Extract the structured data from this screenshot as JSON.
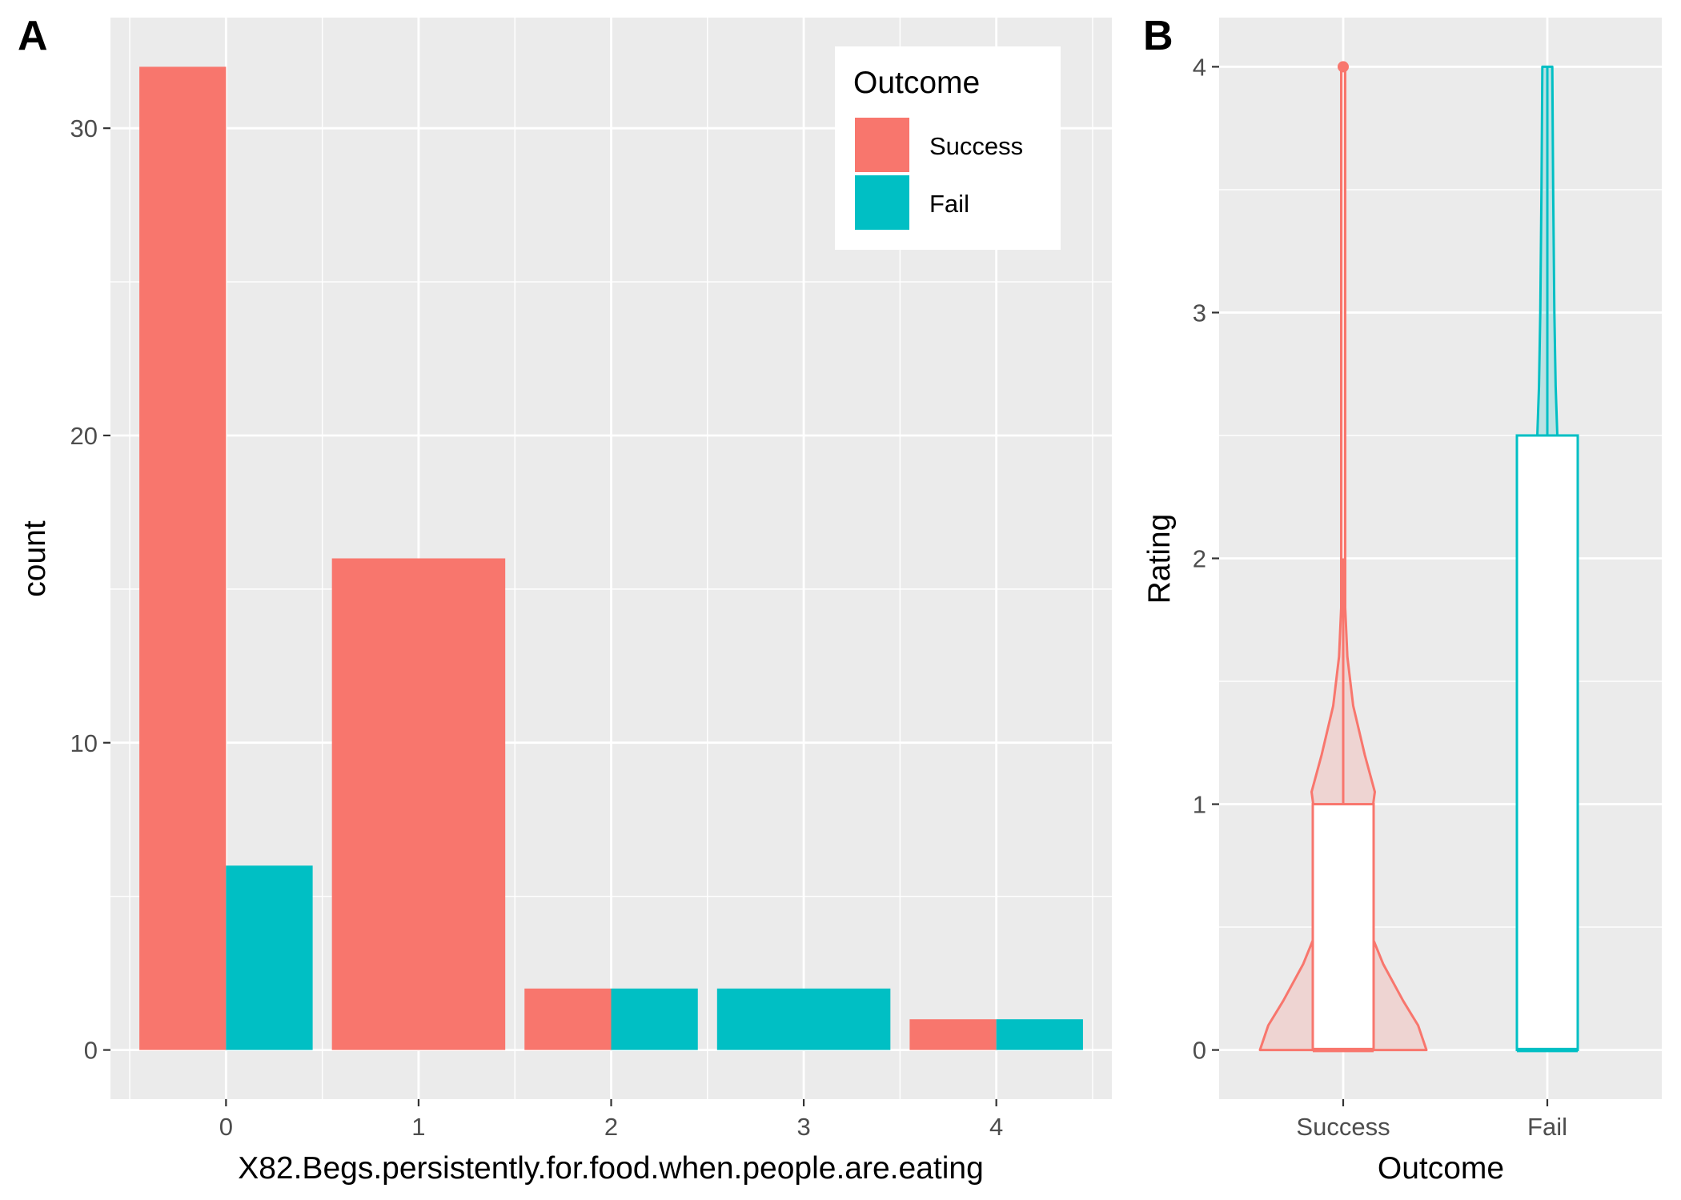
{
  "colors": {
    "Success": "#F8766D",
    "Fail": "#00BFC4",
    "panel_bg": "#EBEBEB",
    "grid": "#FFFFFF"
  },
  "chart_data": [
    {
      "panel": "A",
      "type": "bar",
      "position": "dodge",
      "xlabel": "X82.Begs.persistently.for.food.when.people.are.eating",
      "ylabel": "count",
      "x_ticks": [
        "0",
        "1",
        "2",
        "3",
        "4"
      ],
      "y_ticks": [
        0,
        10,
        20,
        30
      ],
      "xlim": [
        -0.6,
        4.6
      ],
      "ylim": [
        -1.6,
        33.6
      ],
      "grid": true,
      "legend": {
        "title": "Outcome",
        "placement": "top-right",
        "entries": [
          {
            "label": "Success",
            "color": "#F8766D"
          },
          {
            "label": "Fail",
            "color": "#00BFC4"
          }
        ]
      },
      "bars": [
        {
          "x": 0,
          "series": "Success",
          "value": 32,
          "group_size": 2,
          "slot": 0
        },
        {
          "x": 0,
          "series": "Fail",
          "value": 6,
          "group_size": 2,
          "slot": 1
        },
        {
          "x": 1,
          "series": "Success",
          "value": 16,
          "group_size": 1,
          "slot": 0
        },
        {
          "x": 2,
          "series": "Success",
          "value": 2,
          "group_size": 2,
          "slot": 0
        },
        {
          "x": 2,
          "series": "Fail",
          "value": 2,
          "group_size": 2,
          "slot": 1
        },
        {
          "x": 3,
          "series": "Fail",
          "value": 2,
          "group_size": 1,
          "slot": 0
        },
        {
          "x": 4,
          "series": "Success",
          "value": 1,
          "group_size": 2,
          "slot": 0
        },
        {
          "x": 4,
          "series": "Fail",
          "value": 1,
          "group_size": 2,
          "slot": 1
        }
      ]
    },
    {
      "panel": "B",
      "type": "violin+box",
      "xlabel": "Outcome",
      "ylabel": "Rating",
      "categories": [
        "Success",
        "Fail"
      ],
      "y_ticks": [
        0,
        1,
        2,
        3,
        4
      ],
      "ylim": [
        -0.2,
        4.2
      ],
      "grid": true,
      "boxes": [
        {
          "name": "Success",
          "color": "#F8766D",
          "min": 0,
          "q1": 0,
          "median": 0,
          "q3": 1,
          "max": 2,
          "outliers": [
            4
          ]
        },
        {
          "name": "Fail",
          "color": "#00BFC4",
          "min": 0,
          "q1": 0,
          "median": 0,
          "q3": 2.5,
          "max": 4,
          "outliers": []
        }
      ],
      "violins": [
        {
          "name": "Success",
          "color": "#F8766D",
          "density_profile": [
            [
              0,
              1.0
            ],
            [
              0.1,
              0.9
            ],
            [
              0.2,
              0.72
            ],
            [
              0.35,
              0.48
            ],
            [
              0.5,
              0.3
            ],
            [
              0.65,
              0.15
            ],
            [
              0.8,
              0.2
            ],
            [
              0.95,
              0.34
            ],
            [
              1.05,
              0.38
            ],
            [
              1.2,
              0.26
            ],
            [
              1.4,
              0.12
            ],
            [
              1.6,
              0.05
            ],
            [
              1.8,
              0.02
            ],
            [
              2.0,
              0.02
            ],
            [
              2.3,
              0.015
            ],
            [
              2.6,
              0.009
            ],
            [
              3.0,
              0.007
            ],
            [
              3.5,
              0.006
            ],
            [
              4.0,
              0.006
            ]
          ]
        },
        {
          "name": "Fail",
          "color": "#00BFC4",
          "density_profile": [
            [
              0,
              0.12
            ],
            [
              0.5,
              0.12
            ],
            [
              1.0,
              0.12
            ],
            [
              1.5,
              0.12
            ],
            [
              2.0,
              0.12
            ],
            [
              2.5,
              0.12
            ],
            [
              2.7,
              0.1
            ],
            [
              3.0,
              0.085
            ],
            [
              3.5,
              0.07
            ],
            [
              4.0,
              0.06
            ]
          ]
        }
      ]
    }
  ]
}
